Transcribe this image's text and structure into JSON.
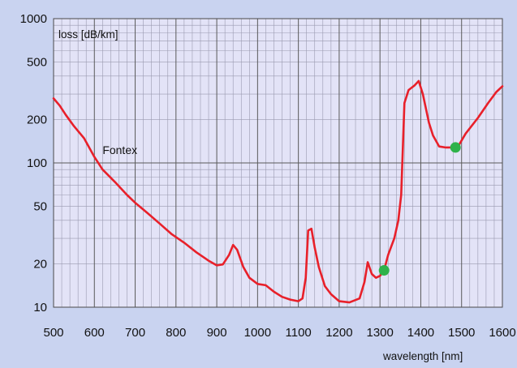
{
  "chart_data": {
    "type": "line",
    "title": "",
    "xlabel": "wavelength [nm]",
    "ylabel": "loss [dB/km]",
    "xlim": [
      500,
      1600
    ],
    "ylim": [
      10,
      1000
    ],
    "yscale": "log",
    "grid": true,
    "x_ticks": [
      "500",
      "600",
      "700",
      "800",
      "900",
      "1000",
      "1100",
      "1200",
      "1300",
      "1400",
      "1500",
      "1600"
    ],
    "y_ticks": [
      {
        "value": 10,
        "label": "10"
      },
      {
        "value": 20,
        "label": "20"
      },
      {
        "value": 50,
        "label": "50"
      },
      {
        "value": 100,
        "label": "100"
      },
      {
        "value": 200,
        "label": "200"
      },
      {
        "value": 500,
        "label": "500"
      },
      {
        "value": 1000,
        "label": "1000"
      }
    ],
    "annotations": [
      {
        "text": "Fontex",
        "x": 620,
        "y": 115
      }
    ],
    "series": [
      {
        "color": "#e8202a",
        "x": [
          500,
          515,
          530,
          550,
          575,
          600,
          620,
          650,
          680,
          700,
          730,
          760,
          790,
          820,
          850,
          880,
          900,
          915,
          930,
          940,
          950,
          965,
          980,
          1000,
          1020,
          1040,
          1060,
          1080,
          1100,
          1110,
          1118,
          1124,
          1132,
          1140,
          1150,
          1165,
          1180,
          1200,
          1225,
          1250,
          1262,
          1270,
          1280,
          1290,
          1300,
          1310,
          1320,
          1335,
          1345,
          1352,
          1360,
          1370,
          1385,
          1395,
          1405,
          1420,
          1430,
          1445,
          1460,
          1470,
          1490,
          1510,
          1540,
          1565,
          1585,
          1600
        ],
        "y": [
          280,
          250,
          215,
          180,
          148,
          110,
          90,
          74,
          60,
          53,
          45,
          38,
          32,
          28,
          24,
          21,
          19.5,
          19.8,
          23,
          27,
          25,
          19,
          16,
          14.5,
          14.2,
          12.8,
          11.8,
          11.3,
          11,
          11.5,
          16,
          34,
          35,
          26,
          19,
          14,
          12.3,
          11,
          10.8,
          11.5,
          15,
          20.5,
          17,
          16,
          16.5,
          18,
          23,
          30,
          40,
          60,
          260,
          320,
          345,
          370,
          300,
          190,
          155,
          130,
          128,
          128,
          128,
          160,
          205,
          260,
          310,
          340
        ]
      }
    ],
    "markers": [
      {
        "x": 1310,
        "y": 18,
        "color": "#2fb24a"
      },
      {
        "x": 1485,
        "y": 128,
        "color": "#2fb24a"
      }
    ]
  }
}
